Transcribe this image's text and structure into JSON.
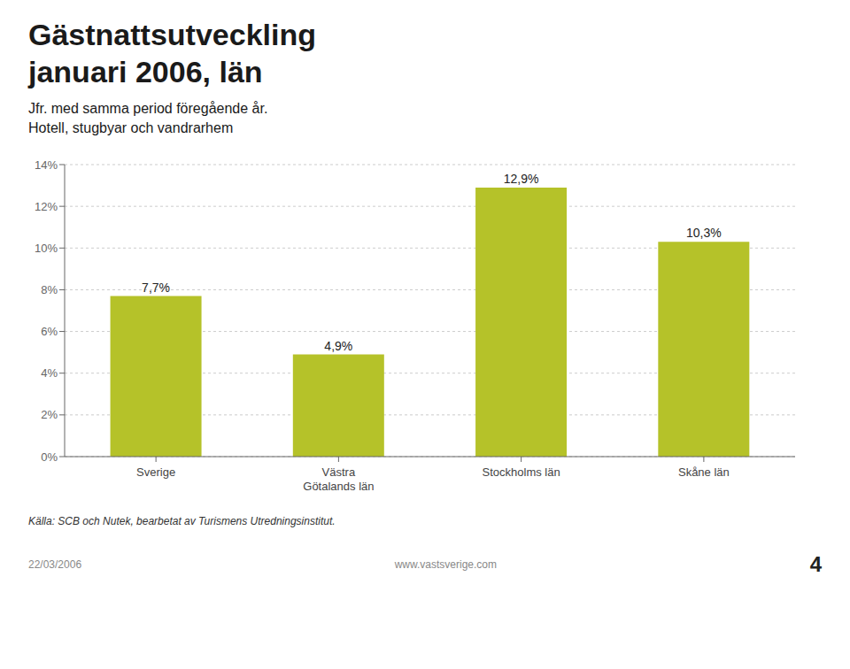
{
  "chart_data": {
    "type": "bar",
    "title": [
      "Gästnattsutveckling",
      "januari 2006, län"
    ],
    "subtitle": [
      "Jfr. med samma period föregående år.",
      "Hotell, stugbyar och vandrarhem"
    ],
    "categories": [
      "Sverige",
      "Västra\nGötalands län",
      "Stockholms län",
      "Skåne län"
    ],
    "values": [
      7.7,
      4.9,
      12.9,
      10.3
    ],
    "value_labels": [
      "7,7%",
      "4,9%",
      "12,9%",
      "10,3%"
    ],
    "data_labels": true,
    "color": "#b5c229",
    "ylim": [
      0,
      14
    ],
    "yticks": [
      {
        "value": 0,
        "label": "0%"
      },
      {
        "value": 2,
        "label": "2%"
      },
      {
        "value": 4,
        "label": "4%"
      },
      {
        "value": 6,
        "label": "6%"
      },
      {
        "value": 8,
        "label": "8%"
      },
      {
        "value": 10,
        "label": "10%"
      },
      {
        "value": 12,
        "label": "12%"
      },
      {
        "value": 14,
        "label": "14%"
      }
    ],
    "grid": true,
    "annotations": [
      "Källa: SCB och Nutek, bearbetat av Turismens Utredningsinstitut.",
      "22/03/2006",
      "www.vastsverige.com",
      "4"
    ]
  }
}
